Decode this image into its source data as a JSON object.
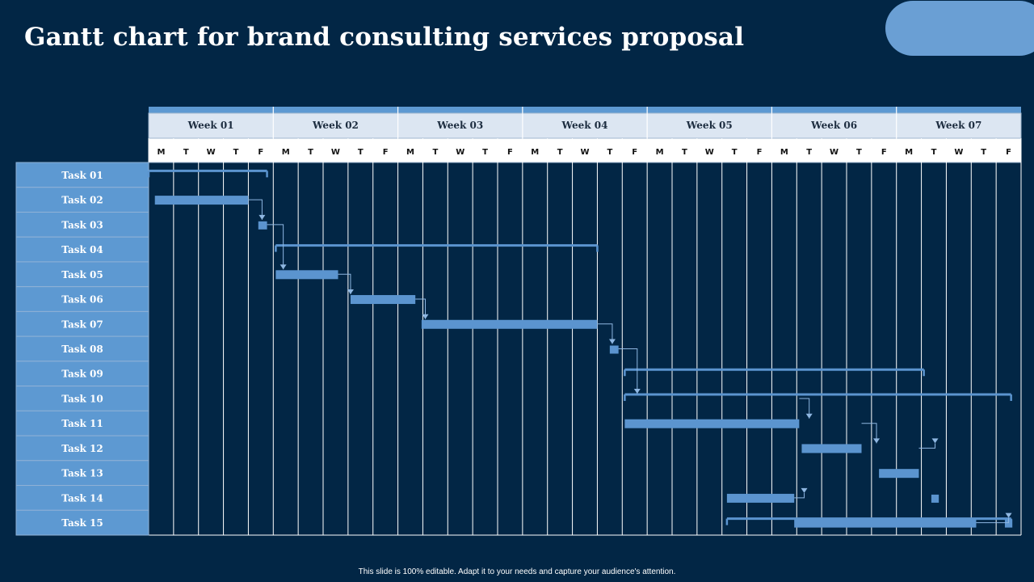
{
  "slide": {
    "title": "Gantt chart for brand consulting services proposal",
    "footer": "This slide is 100% editable. Adapt it to your needs and capture your audience's attention."
  },
  "colors": {
    "background": "#022645",
    "accent": "#6A9FD4",
    "header_fill": "#DCE6F2",
    "task_label_fill": "#5D99D2",
    "bar": "#5B94CF",
    "grid": "#ffffff"
  },
  "chart_data": {
    "type": "gantt",
    "weeks": [
      "Week 01",
      "Week 02",
      "Week 03",
      "Week 04",
      "Week 05",
      "Week 06",
      "Week 07"
    ],
    "days": [
      "M",
      "T",
      "W",
      "T",
      "F"
    ],
    "tasks": [
      {
        "label": "Task 01",
        "kind": "summary",
        "start": 0.0,
        "end": 4.75
      },
      {
        "label": "Task 02",
        "kind": "bar",
        "start": 0.25,
        "end": 4.0
      },
      {
        "label": "Task 03",
        "kind": "milestone",
        "start": 4.4,
        "end": 4.75
      },
      {
        "label": "Task 04",
        "kind": "summary",
        "start": 5.1,
        "end": 18.0
      },
      {
        "label": "Task 05",
        "kind": "bar",
        "start": 5.1,
        "end": 7.6
      },
      {
        "label": "Task 06",
        "kind": "bar",
        "start": 8.1,
        "end": 10.7
      },
      {
        "label": "Task 07",
        "kind": "bar",
        "start": 10.95,
        "end": 18.0
      },
      {
        "label": "Task 08",
        "kind": "milestone",
        "start": 18.5,
        "end": 18.85
      },
      {
        "label": "Task 09",
        "kind": "summary",
        "start": 19.1,
        "end": 31.1
      },
      {
        "label": "Task 10",
        "kind": "summary",
        "start": 19.1,
        "end": 34.6
      },
      {
        "label": "Task 11",
        "kind": "bar",
        "start": 19.1,
        "end": 26.1
      },
      {
        "label": "Task 12",
        "kind": "bar",
        "start": 26.2,
        "end": 28.6
      },
      {
        "label": "Task 13",
        "kind": "bar",
        "start": 29.3,
        "end": 30.9
      },
      {
        "label": "Task 14",
        "kind": "milestone",
        "start": 31.4,
        "end": 31.7
      },
      {
        "label": "Task 15",
        "kind": "summary",
        "start": 23.2,
        "end": 34.6
      }
    ],
    "extra_bars": [
      {
        "row": 13,
        "start": 23.2,
        "end": 25.9
      },
      {
        "row": 14,
        "start": 25.9,
        "end": 33.2
      },
      {
        "row": 14,
        "start": 34.35,
        "end": 34.65,
        "milestone": true
      }
    ],
    "links": [
      {
        "from": [
          1,
          4.0
        ],
        "to": [
          2,
          4.55
        ]
      },
      {
        "from": [
          2,
          4.75
        ],
        "to": [
          4,
          5.4
        ]
      },
      {
        "from": [
          4,
          7.6
        ],
        "to": [
          5,
          8.1
        ]
      },
      {
        "from": [
          5,
          10.7
        ],
        "to": [
          6,
          11.1
        ]
      },
      {
        "from": [
          6,
          18.0
        ],
        "to": [
          7,
          18.6
        ]
      },
      {
        "from": [
          7,
          18.85
        ],
        "to": [
          9,
          19.6
        ]
      },
      {
        "from": [
          9,
          26.1
        ],
        "to": [
          10,
          26.5
        ]
      },
      {
        "from": [
          10,
          28.6
        ],
        "to": [
          11,
          29.2
        ]
      },
      {
        "from": [
          11,
          30.9
        ],
        "to": [
          11,
          31.55
        ]
      },
      {
        "from": [
          13,
          25.9
        ],
        "to": [
          13,
          26.3
        ]
      },
      {
        "from": [
          14,
          33.2
        ],
        "to": [
          14,
          34.5
        ]
      }
    ]
  }
}
